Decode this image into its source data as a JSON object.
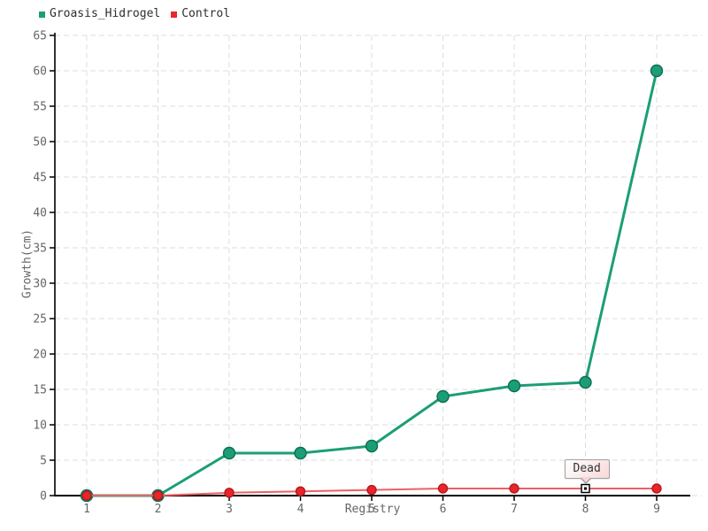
{
  "chart_data": {
    "type": "line",
    "title": "",
    "xlabel": "Registry",
    "ylabel": "Growth(cm)",
    "x": [
      1,
      2,
      3,
      4,
      5,
      6,
      7,
      8,
      9
    ],
    "xticks": [
      1,
      2,
      3,
      4,
      5,
      6,
      7,
      8,
      9
    ],
    "yticks": [
      0,
      5,
      10,
      15,
      20,
      25,
      30,
      35,
      40,
      45,
      50,
      55,
      60,
      65
    ],
    "xlim": [
      1,
      9
    ],
    "ylim": [
      0,
      65
    ],
    "grid": true,
    "grid_style": "dashed",
    "legend_position": "top-left",
    "series": [
      {
        "name": "Groasis_Hidrogel",
        "color": "#1b9e77",
        "line_color": "#1b9e77",
        "marker_stroke": "#0d6e52",
        "line_width": 3,
        "marker": "circle",
        "marker_radius": 6.5,
        "values": [
          0,
          0,
          6,
          6,
          7,
          14,
          15.5,
          16,
          60
        ]
      },
      {
        "name": "Control",
        "color": "#e8252a",
        "line_color": "#ef5f63",
        "marker_stroke": "#b5181d",
        "line_width": 2,
        "marker": "circle",
        "marker_radius": 5,
        "values": [
          0,
          0,
          0.4,
          0.6,
          0.8,
          1,
          1,
          1,
          1
        ]
      }
    ],
    "annotations": [
      {
        "label": "Dead",
        "x": 8,
        "y": 1,
        "series": "Control",
        "marker": "white-square"
      }
    ]
  },
  "colors": {
    "axis": "#000000",
    "gridline": "#dcdcdc",
    "tick_label": "#666666",
    "legend_text": "#2e2e2e"
  }
}
